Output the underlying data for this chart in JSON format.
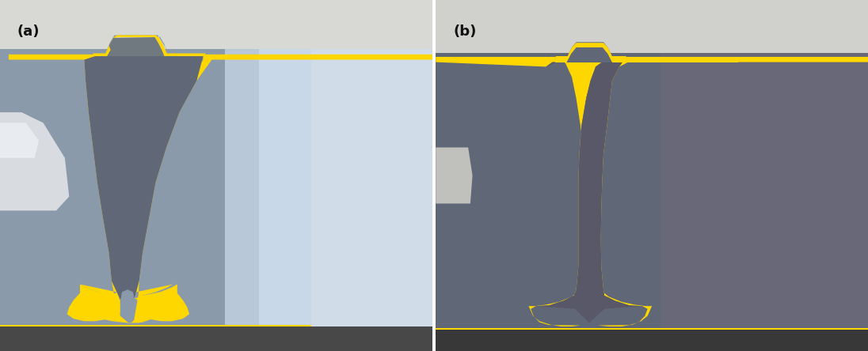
{
  "figsize": [
    10.96,
    4.44
  ],
  "dpi": 100,
  "background_color": "#ffffff",
  "label_a": "(a)",
  "label_b": "(b)",
  "label_fontsize": 13,
  "label_color": "#111111",
  "yellow_color": "#FFD700",
  "panel_a": {
    "bg_left": "#8a9aaa",
    "bg_right": "#b8c8d8",
    "top_bg": "#d8d8d4",
    "bottom_bg": "#585858",
    "weld_center": "#606878",
    "left_blob": "#c8d0d8",
    "bottom_strip": "#484848"
  },
  "panel_b": {
    "bg_main": "#606878",
    "bg_right": "#686878",
    "top_bg": "#d0d0cc",
    "bottom_bg": "#484848",
    "weld_center": "#585868",
    "left_blob": "#c8c8c4",
    "bottom_strip": "#383838"
  }
}
